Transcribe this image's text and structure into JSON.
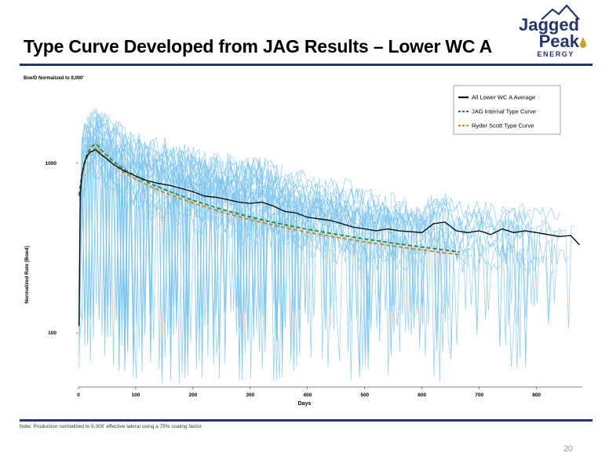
{
  "title": "Type Curve Developed from JAG Results – Lower WC A",
  "logo": {
    "line1": "Jagged",
    "line2": "Peak",
    "line3": "ENERGY"
  },
  "note": "Note: Production normalized to 9,000' effective lateral using a 75% scaling factor.",
  "page_number": "20",
  "colors": {
    "navy": "#25356b",
    "light_blue": "#7cc4ee",
    "black": "#000000",
    "green": "#1e8a3c",
    "orange": "#d4832c"
  },
  "chart_data": {
    "type": "line",
    "title": "",
    "corner_label": "Boe/D Normalized to 9,000'",
    "xlabel": "Days",
    "ylabel": "Normalized Rate [Boed]",
    "xlim": [
      0,
      880
    ],
    "ylim": [
      48,
      2900
    ],
    "yscale": "log",
    "x_ticks": [
      "0",
      "100",
      "200",
      "300",
      "400",
      "500",
      "600",
      "700",
      "800"
    ],
    "y_ticks": [
      "100",
      "1000"
    ],
    "legend_position": "top-right",
    "series": [
      {
        "name": "All Lower WC A Average",
        "style": "solid",
        "color": "#000000",
        "x": [
          1,
          3,
          6,
          10,
          15,
          20,
          25,
          30,
          35,
          40,
          50,
          60,
          80,
          100,
          120,
          140,
          160,
          180,
          200,
          220,
          240,
          260,
          280,
          300,
          320,
          340,
          360,
          380,
          400,
          420,
          440,
          460,
          480,
          500,
          520,
          540,
          560,
          580,
          600,
          620,
          640,
          660,
          680,
          700,
          720,
          740,
          760,
          780,
          800,
          820,
          840,
          860,
          875
        ],
        "y": [
          110,
          650,
          850,
          1000,
          1100,
          1160,
          1180,
          1200,
          1160,
          1120,
          1060,
          990,
          900,
          840,
          790,
          760,
          740,
          710,
          680,
          640,
          630,
          610,
          590,
          580,
          590,
          560,
          520,
          510,
          480,
          470,
          460,
          440,
          420,
          410,
          400,
          410,
          400,
          395,
          390,
          440,
          450,
          400,
          390,
          400,
          380,
          410,
          390,
          400,
          390,
          380,
          370,
          375,
          330
        ]
      },
      {
        "name": "JAG Internal Type Curve",
        "style": "dashed",
        "color": "#1e8a3c",
        "x": [
          1,
          5,
          10,
          15,
          20,
          25,
          30,
          35,
          40,
          50,
          60,
          80,
          100,
          125,
          150,
          175,
          200,
          250,
          300,
          350,
          400,
          450,
          500,
          550,
          600,
          630,
          665
        ],
        "y": [
          650,
          820,
          990,
          1120,
          1220,
          1270,
          1300,
          1260,
          1200,
          1110,
          1030,
          920,
          840,
          760,
          700,
          650,
          605,
          535,
          482,
          441,
          408,
          381,
          358,
          338,
          321,
          311,
          300
        ]
      },
      {
        "name": "Ryder Scott Type Curve",
        "style": "dashed",
        "color": "#d4832c",
        "x": [
          1,
          5,
          10,
          15,
          20,
          25,
          30,
          35,
          40,
          50,
          60,
          80,
          100,
          125,
          150,
          175,
          200,
          250,
          300,
          350,
          400,
          450,
          500,
          550,
          600,
          630,
          665
        ],
        "y": [
          640,
          800,
          960,
          1080,
          1170,
          1210,
          1230,
          1190,
          1140,
          1060,
          985,
          880,
          805,
          730,
          672,
          625,
          583,
          516,
          465,
          425,
          392,
          366,
          344,
          325,
          308,
          299,
          289
        ]
      }
    ]
  }
}
